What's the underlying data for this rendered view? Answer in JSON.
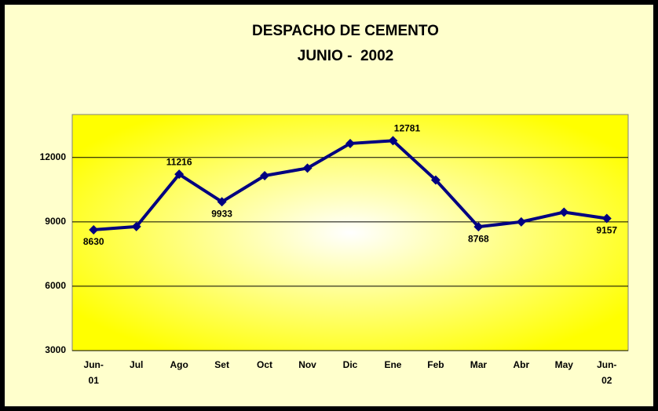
{
  "chart_data": {
    "type": "line",
    "title": "DESPACHO DE CEMENTO",
    "subtitle": "JUNIO -  2002",
    "categories": [
      "Jun-01",
      "Jul",
      "Ago",
      "Set",
      "Oct",
      "Nov",
      "Dic",
      "Ene",
      "Feb",
      "Mar",
      "Abr",
      "May",
      "Jun-02"
    ],
    "values": [
      8630,
      8780,
      11216,
      9933,
      11150,
      11500,
      12650,
      12781,
      10950,
      8768,
      9000,
      9450,
      9157
    ],
    "value_labels": [
      "8630",
      null,
      "11216",
      "9933",
      null,
      null,
      null,
      "12781",
      null,
      "8768",
      null,
      null,
      "9157"
    ],
    "color": "#000080",
    "ylim": [
      3000,
      14000
    ],
    "yticks": [
      3000,
      6000,
      9000,
      12000
    ],
    "grid": true
  }
}
